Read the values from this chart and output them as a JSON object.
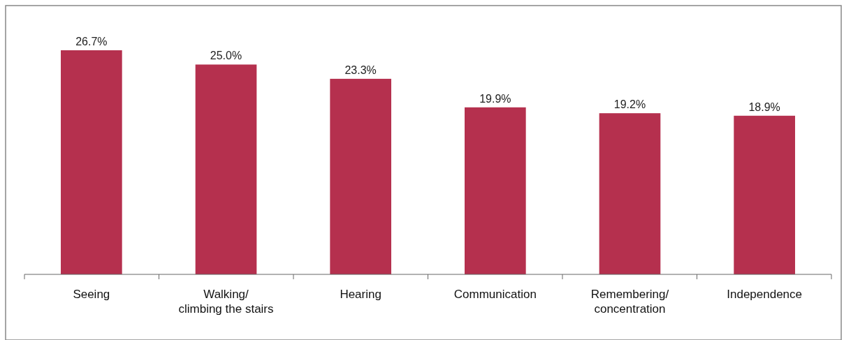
{
  "chart_data": {
    "type": "bar",
    "categories": [
      "Seeing",
      "Walking/climbing the stairs",
      "Hearing",
      "Communication",
      "Remembering/concentration",
      "Independence"
    ],
    "values": [
      26.7,
      25.0,
      23.3,
      19.9,
      19.2,
      18.9
    ],
    "value_labels": [
      "26.7%",
      "25.0%",
      "23.3%",
      "19.9%",
      "19.2%",
      "18.9%"
    ],
    "color": "#b5304e"
  }
}
